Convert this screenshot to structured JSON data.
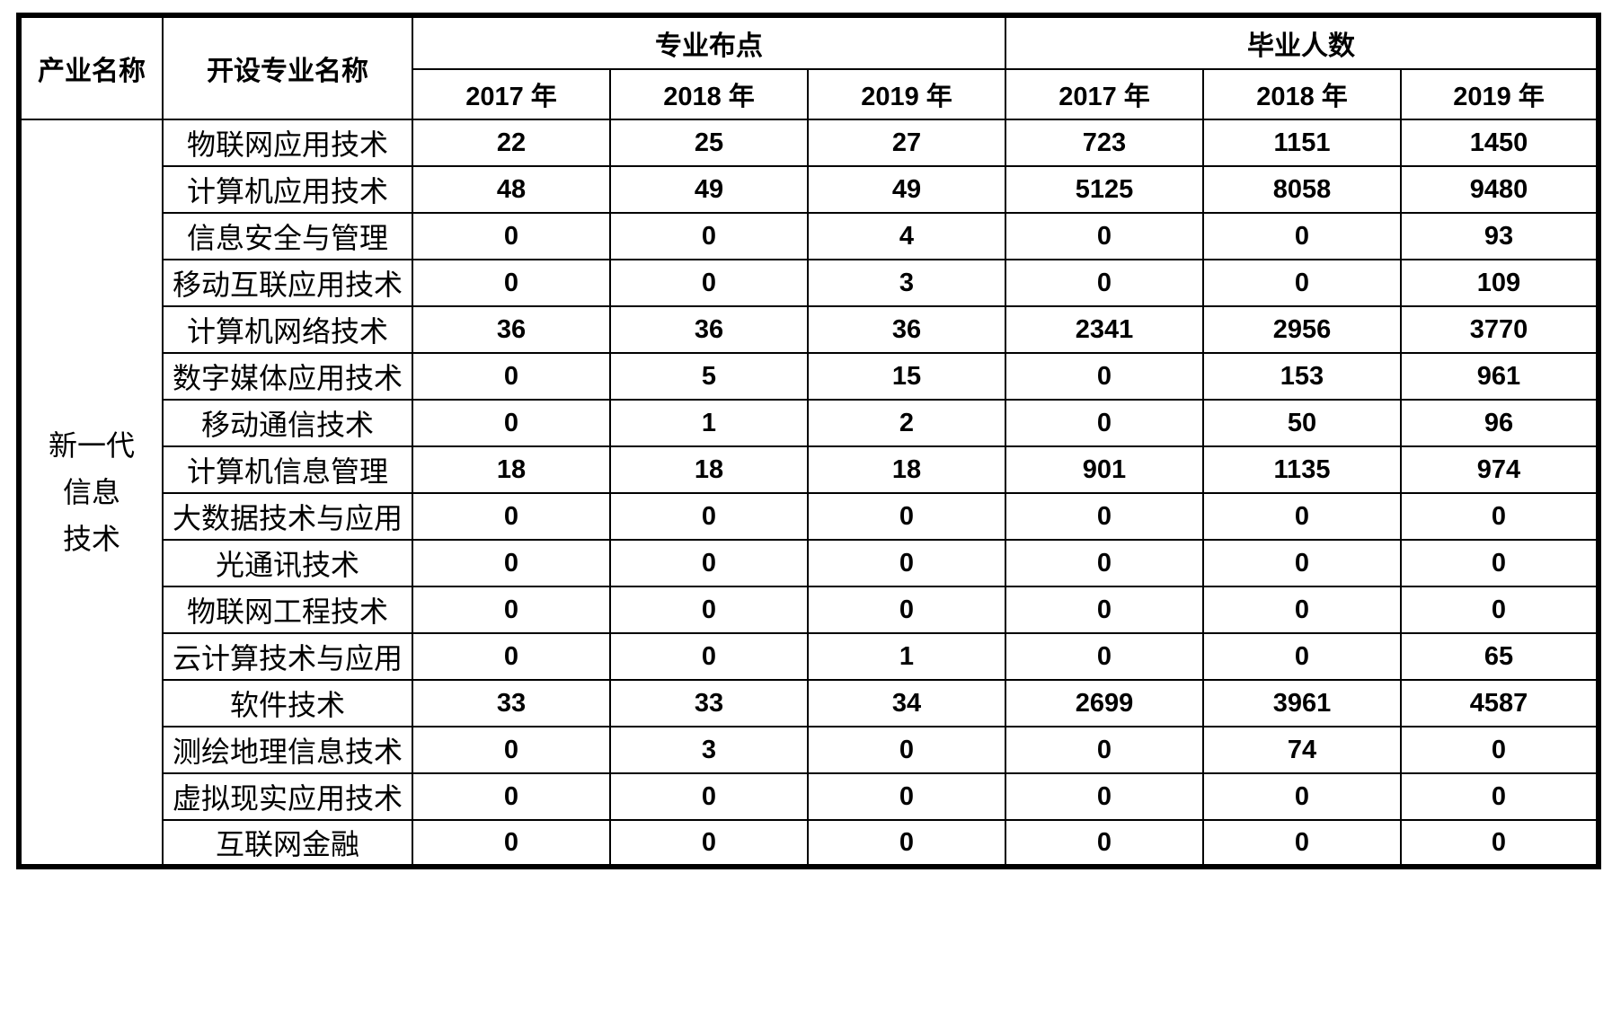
{
  "table": {
    "headers": {
      "industry": "产业名称",
      "major": "开设专业名称",
      "points_group": "专业布点",
      "graduates_group": "毕业人数",
      "years": [
        "2017 年",
        "2018 年",
        "2019 年"
      ]
    },
    "industry": {
      "name": "新一代信息技术",
      "lines": [
        "新一代",
        "信息",
        "技术"
      ]
    },
    "rows": [
      {
        "major": "物联网应用技术",
        "points": [
          22,
          25,
          27
        ],
        "graduates": [
          723,
          1151,
          1450
        ]
      },
      {
        "major": "计算机应用技术",
        "points": [
          48,
          49,
          49
        ],
        "graduates": [
          5125,
          8058,
          9480
        ]
      },
      {
        "major": "信息安全与管理",
        "points": [
          0,
          0,
          4
        ],
        "graduates": [
          0,
          0,
          93
        ]
      },
      {
        "major": "移动互联应用技术",
        "points": [
          0,
          0,
          3
        ],
        "graduates": [
          0,
          0,
          109
        ]
      },
      {
        "major": "计算机网络技术",
        "points": [
          36,
          36,
          36
        ],
        "graduates": [
          2341,
          2956,
          3770
        ]
      },
      {
        "major": "数字媒体应用技术",
        "points": [
          0,
          5,
          15
        ],
        "graduates": [
          0,
          153,
          961
        ]
      },
      {
        "major": "移动通信技术",
        "points": [
          0,
          1,
          2
        ],
        "graduates": [
          0,
          50,
          96
        ]
      },
      {
        "major": "计算机信息管理",
        "points": [
          18,
          18,
          18
        ],
        "graduates": [
          901,
          1135,
          974
        ]
      },
      {
        "major": "大数据技术与应用",
        "points": [
          0,
          0,
          0
        ],
        "graduates": [
          0,
          0,
          0
        ]
      },
      {
        "major": "光通讯技术",
        "points": [
          0,
          0,
          0
        ],
        "graduates": [
          0,
          0,
          0
        ]
      },
      {
        "major": "物联网工程技术",
        "points": [
          0,
          0,
          0
        ],
        "graduates": [
          0,
          0,
          0
        ]
      },
      {
        "major": "云计算技术与应用",
        "points": [
          0,
          0,
          1
        ],
        "graduates": [
          0,
          0,
          65
        ]
      },
      {
        "major": "软件技术",
        "points": [
          33,
          33,
          34
        ],
        "graduates": [
          2699,
          3961,
          4587
        ]
      },
      {
        "major": "测绘地理信息技术",
        "points": [
          0,
          3,
          0
        ],
        "graduates": [
          0,
          74,
          0
        ]
      },
      {
        "major": "虚拟现实应用技术",
        "points": [
          0,
          0,
          0
        ],
        "graduates": [
          0,
          0,
          0
        ]
      },
      {
        "major": "互联网金融",
        "points": [
          0,
          0,
          0
        ],
        "graduates": [
          0,
          0,
          0
        ]
      }
    ],
    "colors": {
      "border": "#000000",
      "text": "#000000",
      "background": "#ffffff"
    }
  }
}
